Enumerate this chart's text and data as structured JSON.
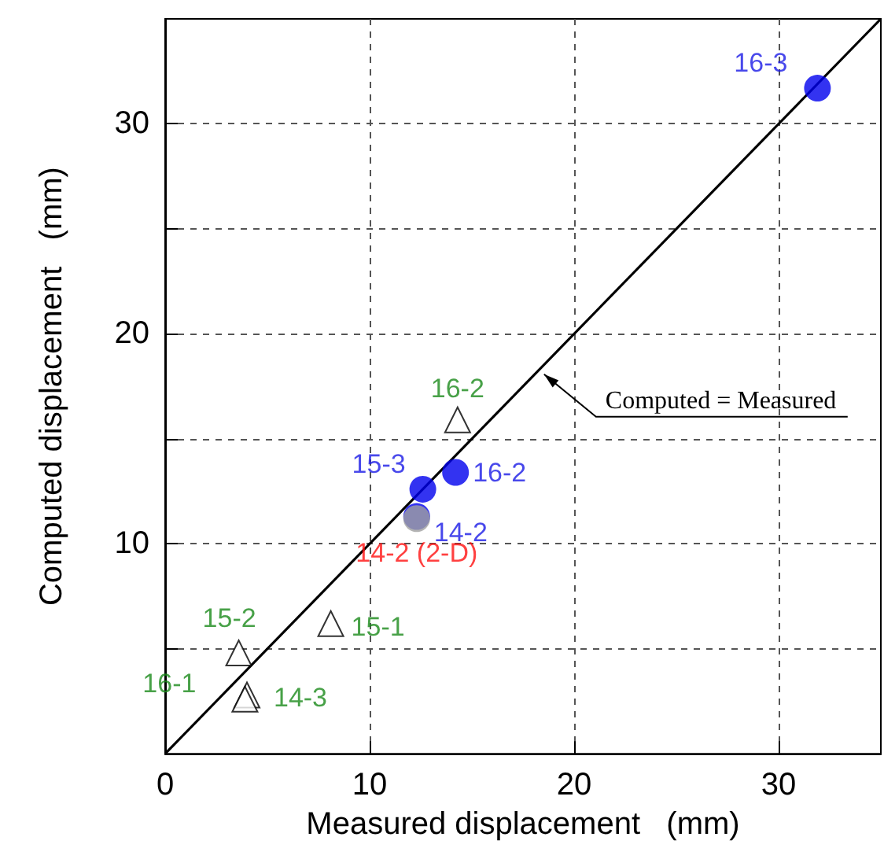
{
  "chart_data": {
    "type": "scatter",
    "xlabel": "Measured displacement   (mm)",
    "ylabel": "Computed displacement   (mm)",
    "xlim": [
      0,
      35
    ],
    "ylim": [
      0,
      35
    ],
    "xticks": [
      0,
      10,
      20,
      30
    ],
    "yticks": [
      {
        "value": 5,
        "label": null
      },
      10,
      {
        "value": 15,
        "label": null
      },
      20,
      {
        "value": 25,
        "label": null
      },
      30
    ],
    "grid": true,
    "series": [
      {
        "color": "#0000ee",
        "marker": "circle",
        "x": [
          31.9,
          14.2,
          12.6,
          12.3
        ],
        "values": [
          31.7,
          13.4,
          12.6,
          11.3
        ],
        "value_labels": [
          "16-3",
          "16-2",
          "15-3",
          "14-2"
        ]
      },
      {
        "color": "#a0a0a0",
        "marker": "circle",
        "x": [
          12.3
        ],
        "values": [
          11.2
        ],
        "value_labels": [
          "14-2 (2-D)"
        ]
      },
      {
        "color": "#000000",
        "marker": "triangle",
        "x": [
          14.3,
          8.1,
          3.6,
          4.0,
          3.9
        ],
        "values": [
          15.9,
          6.2,
          4.8,
          2.8,
          2.6
        ],
        "value_labels": [
          "16-2",
          "15-1",
          "15-2",
          "14-3",
          "16-1"
        ]
      },
      {
        "type": "line",
        "color": "#000000",
        "marker": "none",
        "line_style": "solid",
        "x": [
          0,
          35
        ],
        "values": [
          0,
          35
        ]
      }
    ],
    "annotations": [
      {
        "text": "Computed = Measured",
        "x": 18.3,
        "y": 18.3
      }
    ]
  }
}
